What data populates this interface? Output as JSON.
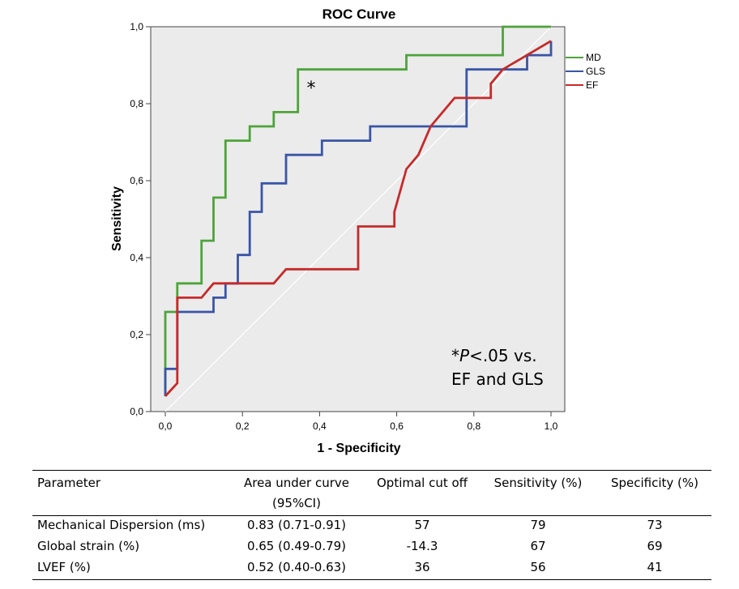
{
  "chart_data": {
    "type": "line",
    "title": "ROC Curve",
    "xlabel": "1 - Specificity",
    "ylabel": "Sensitivity",
    "xlim": [
      0,
      1
    ],
    "ylim": [
      0,
      1
    ],
    "xticks": [
      "0,0",
      "0,2",
      "0,4",
      "0,6",
      "0,8",
      "1,0"
    ],
    "yticks": [
      "0,0",
      "0,2",
      "0,4",
      "0,6",
      "0,8",
      "1,0"
    ],
    "grid": false,
    "legend_position": "right",
    "annotation_marker": "*",
    "annotation_text": [
      "*P<.05 vs.",
      "EF and GLS"
    ],
    "reference_line": [
      [
        0,
        0
      ],
      [
        1,
        1
      ]
    ],
    "series": [
      {
        "name": "MD",
        "color": "#4ea33b",
        "x": [
          0,
          0,
          0.031,
          0.031,
          0.094,
          0.094,
          0.125,
          0.125,
          0.156,
          0.156,
          0.219,
          0.219,
          0.281,
          0.281,
          0.344,
          0.344,
          0.625,
          0.625,
          0.875,
          0.875,
          1.0
        ],
        "y": [
          0.04,
          0.259,
          0.259,
          0.333,
          0.333,
          0.444,
          0.444,
          0.556,
          0.556,
          0.704,
          0.704,
          0.741,
          0.741,
          0.778,
          0.778,
          0.889,
          0.889,
          0.926,
          0.926,
          1.0,
          1.0
        ]
      },
      {
        "name": "GLS",
        "color": "#3a55a6",
        "x": [
          0,
          0,
          0.031,
          0.031,
          0.125,
          0.125,
          0.156,
          0.156,
          0.188,
          0.188,
          0.219,
          0.219,
          0.25,
          0.25,
          0.313,
          0.313,
          0.406,
          0.406,
          0.531,
          0.531,
          0.781,
          0.781,
          0.938,
          0.938,
          1.0,
          1.0
        ],
        "y": [
          0.04,
          0.111,
          0.111,
          0.259,
          0.259,
          0.296,
          0.296,
          0.333,
          0.333,
          0.407,
          0.407,
          0.519,
          0.519,
          0.593,
          0.593,
          0.667,
          0.667,
          0.704,
          0.704,
          0.741,
          0.741,
          0.889,
          0.889,
          0.926,
          0.926,
          0.963
        ]
      },
      {
        "name": "EF",
        "color": "#c62a2a",
        "x": [
          0,
          0.031,
          0.031,
          0.094,
          0.125,
          0.281,
          0.313,
          0.5,
          0.5,
          0.594,
          0.594,
          0.625,
          0.656,
          0.688,
          0.75,
          0.844,
          0.844,
          0.875,
          1.0
        ],
        "y": [
          0.04,
          0.074,
          0.296,
          0.296,
          0.333,
          0.333,
          0.37,
          0.37,
          0.481,
          0.481,
          0.519,
          0.63,
          0.667,
          0.741,
          0.815,
          0.815,
          0.852,
          0.889,
          0.963
        ]
      }
    ]
  },
  "table": {
    "headers": [
      [
        "Parameter"
      ],
      [
        "Area under curve",
        "(95%CI)"
      ],
      [
        "Optimal cut off"
      ],
      [
        "Sensitivity (%)"
      ],
      [
        "Specificity (%)"
      ]
    ],
    "rows": [
      [
        "Mechanical Dispersion (ms)",
        "0.83 (0.71-0.91)",
        "57",
        "79",
        "73"
      ],
      [
        "Global strain (%)",
        "0.65 (0.49-0.79)",
        "-14.3",
        "67",
        "69"
      ],
      [
        "LVEF (%)",
        "0.52 (0.40-0.63)",
        "36",
        "56",
        "41"
      ]
    ]
  }
}
